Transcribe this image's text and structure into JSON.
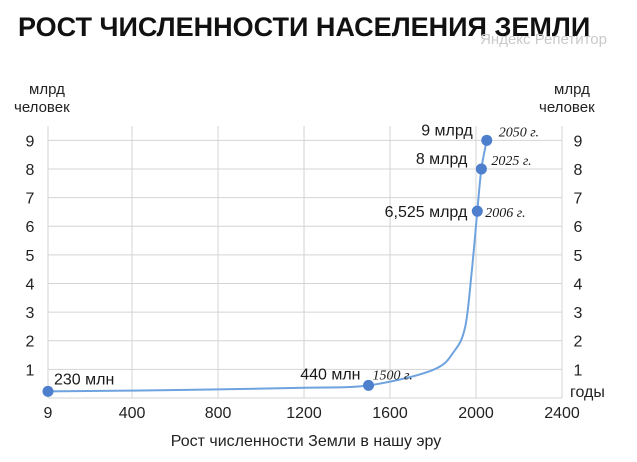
{
  "chart_data": {
    "type": "line",
    "title": "РОСТ ЧИСЛЕННОСТИ НАСЕЛЕНИЯ ЗЕМЛИ",
    "watermark": "Яндекс Репетитор",
    "xlabel": "Рост численности Земли в нашу эру",
    "ylabel_left": [
      "млрд",
      "человек"
    ],
    "ylabel_right": [
      "млрд",
      "человек"
    ],
    "x_unit": "годы",
    "xlim": [
      9,
      2400
    ],
    "ylim": [
      0,
      9.5
    ],
    "x_ticks": [
      9,
      400,
      800,
      1200,
      1600,
      2000,
      2400
    ],
    "x_tick_labels": [
      "9",
      "400",
      "800",
      "1200",
      "1600",
      "2000",
      "2400"
    ],
    "y_ticks": [
      1,
      2,
      3,
      4,
      5,
      6,
      7,
      8,
      9
    ],
    "grid": true,
    "series": [
      {
        "x": [
          9,
          400,
          800,
          1200,
          1500,
          1800,
          1900,
          1950,
          1980,
          2006,
          2025,
          2050
        ],
        "y": [
          0.23,
          0.26,
          0.3,
          0.36,
          0.44,
          0.98,
          1.65,
          2.5,
          4.4,
          6.525,
          8,
          9
        ]
      }
    ],
    "annotations": [
      {
        "x": 9,
        "y": 0.23,
        "label": "230 млн",
        "year": ""
      },
      {
        "x": 1500,
        "y": 0.44,
        "label": "440 млн",
        "year": "1500 г."
      },
      {
        "x": 2006,
        "y": 6.525,
        "label": "6,525 млрд",
        "year": "2006 г."
      },
      {
        "x": 2025,
        "y": 8,
        "label": "8 млрд",
        "year": "2025 г."
      },
      {
        "x": 2050,
        "y": 9,
        "label": "9 млрд",
        "year": "2050 г."
      }
    ],
    "colors": {
      "line": "#6fa3e0",
      "point": "#4d7fcc",
      "grid": "#d4d4d4"
    }
  }
}
